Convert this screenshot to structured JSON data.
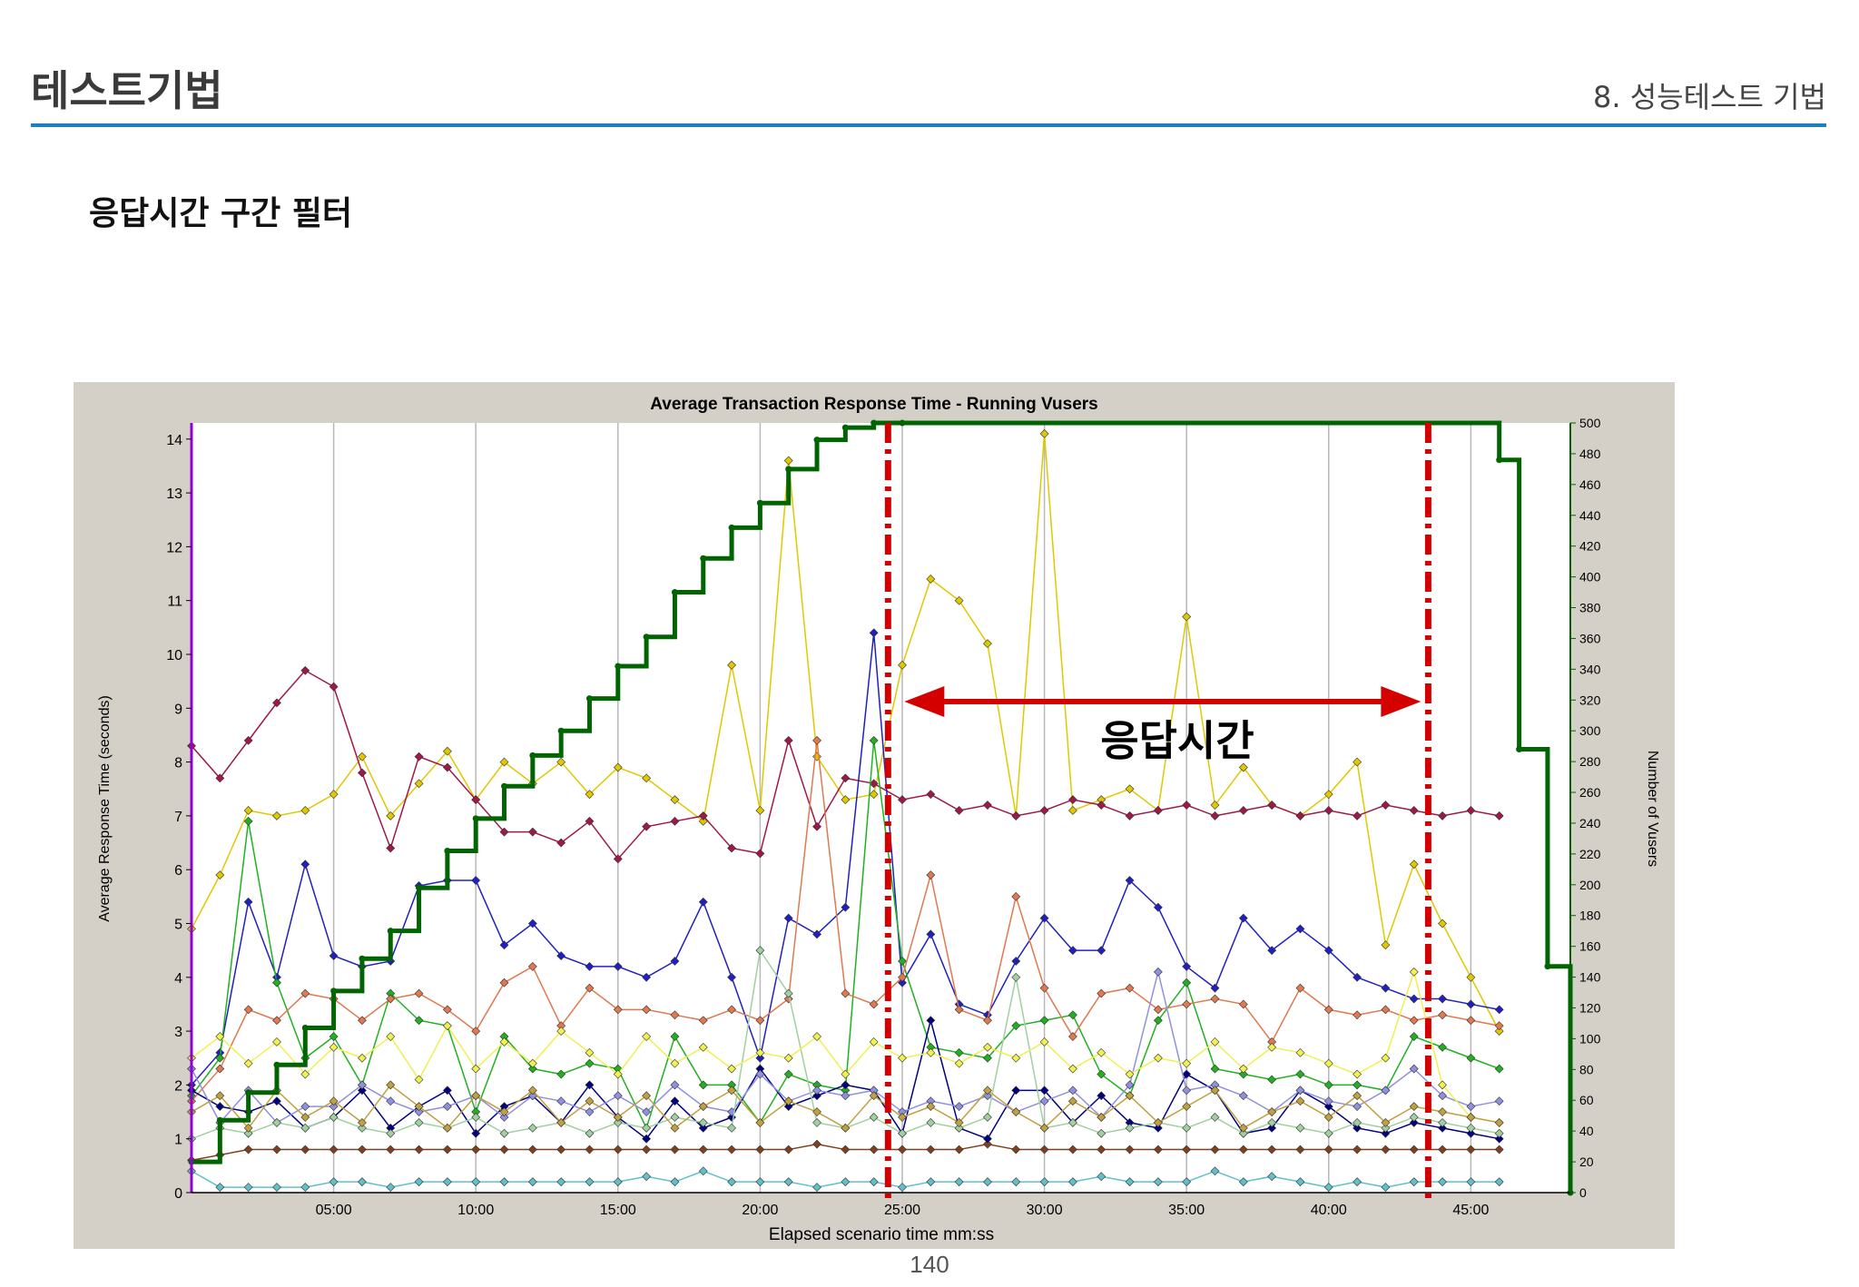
{
  "header": {
    "title": "테스트기법",
    "chapter": "8. 성능테스트 기법"
  },
  "section": {
    "title": "응답시간 구간 필터"
  },
  "page": {
    "number": "140"
  },
  "colors": {
    "header_rule": "#1b7fc0",
    "chart_background": "#d4d0c8",
    "plot_background": "#ffffff",
    "vusers_line": "#006400",
    "marker_lines": "#d40000"
  },
  "annotation": {
    "label": "응답시간",
    "start_time": "24:30",
    "end_time": "43:30"
  },
  "chart_data": {
    "type": "line",
    "title": "Average Transaction Response Time - Running Vusers",
    "xlabel": "Elapsed scenario time mm:ss",
    "ylabel": "Average Response Time (seconds)",
    "y2label": "Number of Vusers",
    "x_ticks": [
      "05:00",
      "10:00",
      "15:00",
      "20:00",
      "25:00",
      "30:00",
      "35:00",
      "40:00",
      "45:00"
    ],
    "y_ticks": [
      "0",
      "1",
      "2",
      "3",
      "4",
      "5",
      "6",
      "7",
      "8",
      "9",
      "10",
      "11",
      "12",
      "13",
      "14"
    ],
    "y2_ticks": [
      "0",
      "20",
      "40",
      "60",
      "80",
      "100",
      "120",
      "140",
      "160",
      "180",
      "200",
      "220",
      "240",
      "260",
      "280",
      "300",
      "320",
      "340",
      "360",
      "380",
      "400",
      "420",
      "440",
      "460",
      "480",
      "500"
    ],
    "xlim_minutes": [
      0,
      48.5
    ],
    "ylim": [
      0,
      14.3
    ],
    "y2lim": [
      0,
      500
    ],
    "grid": "vertical",
    "response_time_minutes": [
      0,
      1,
      2,
      3,
      4,
      5,
      6,
      7,
      8,
      9,
      10,
      11,
      12,
      13,
      14,
      15,
      16,
      17,
      18,
      19,
      20,
      21,
      22,
      23,
      24,
      25,
      26,
      27,
      28,
      29,
      30,
      31,
      32,
      33,
      34,
      35,
      36,
      37,
      38,
      39,
      40,
      41,
      42,
      43,
      44,
      45,
      46
    ],
    "vusers": {
      "times": [
        0,
        1,
        2,
        3,
        4,
        5,
        6,
        7,
        8,
        9,
        10,
        11,
        12,
        13,
        14,
        15,
        16,
        17,
        18,
        19,
        20,
        21,
        22,
        23,
        24,
        25,
        46,
        46.7,
        47.7,
        48.5
      ],
      "values": [
        20,
        47,
        65,
        83,
        107,
        131,
        152,
        170,
        198,
        222,
        243,
        264,
        284,
        300,
        321,
        342,
        361,
        390,
        412,
        432,
        448,
        470,
        489,
        497,
        500,
        500,
        476,
        288,
        147,
        0
      ]
    },
    "series": [
      {
        "color": "#e0c800",
        "values": [
          4.9,
          5.9,
          7.1,
          7.0,
          7.1,
          7.4,
          8.1,
          7.0,
          7.6,
          8.2,
          7.3,
          8.0,
          7.6,
          8.0,
          7.4,
          7.9,
          7.7,
          7.3,
          6.9,
          9.8,
          7.1,
          13.6,
          8.1,
          7.3,
          7.4,
          9.8,
          11.4,
          11.0,
          10.2,
          7.0,
          14.1,
          7.1,
          7.3,
          7.5,
          7.1,
          10.7,
          7.2,
          7.9,
          7.2,
          7.0,
          7.4,
          8.0,
          4.6,
          6.1,
          5.0,
          4.0,
          3.0
        ]
      },
      {
        "color": "#a01848",
        "values": [
          8.3,
          7.7,
          8.4,
          9.1,
          9.7,
          9.4,
          7.8,
          6.4,
          8.1,
          7.9,
          7.3,
          6.7,
          6.7,
          6.5,
          6.9,
          6.2,
          6.8,
          6.9,
          7.0,
          6.4,
          6.3,
          8.4,
          6.8,
          7.7,
          7.6,
          7.3,
          7.4,
          7.1,
          7.2,
          7.0,
          7.1,
          7.3,
          7.2,
          7.0,
          7.1,
          7.2,
          7.0,
          7.1,
          7.2,
          7.0,
          7.1,
          7.0,
          7.2,
          7.1,
          7.0,
          7.1,
          7.0
        ]
      },
      {
        "color": "#2020c0",
        "values": [
          2.0,
          2.6,
          5.4,
          4.0,
          6.1,
          4.4,
          4.2,
          4.3,
          5.7,
          5.8,
          5.8,
          4.6,
          5.0,
          4.4,
          4.2,
          4.2,
          4.0,
          4.3,
          5.4,
          4.0,
          2.5,
          5.1,
          4.8,
          5.3,
          10.4,
          3.9,
          4.8,
          3.5,
          3.3,
          4.3,
          5.1,
          4.5,
          4.5,
          5.8,
          5.3,
          4.2,
          3.8,
          5.1,
          4.5,
          4.9,
          4.5,
          4.0,
          3.8,
          3.6,
          3.6,
          3.5,
          3.4
        ]
      },
      {
        "color": "#20b020",
        "values": [
          1.8,
          2.5,
          6.9,
          3.9,
          2.5,
          2.9,
          2.0,
          3.7,
          3.2,
          3.1,
          1.5,
          2.9,
          2.3,
          2.2,
          2.4,
          2.3,
          1.2,
          2.9,
          2.0,
          2.0,
          1.3,
          2.2,
          2.0,
          1.9,
          8.4,
          4.3,
          2.7,
          2.6,
          2.5,
          3.1,
          3.2,
          3.3,
          2.2,
          1.8,
          3.2,
          3.9,
          2.3,
          2.2,
          2.1,
          2.2,
          2.0,
          2.0,
          1.9,
          2.9,
          2.7,
          2.5,
          2.3
        ]
      },
      {
        "color": "#e07850",
        "values": [
          1.7,
          2.3,
          3.4,
          3.2,
          3.7,
          3.6,
          3.2,
          3.6,
          3.7,
          3.4,
          3.0,
          3.9,
          4.2,
          3.1,
          3.8,
          3.4,
          3.4,
          3.3,
          3.2,
          3.4,
          3.2,
          3.6,
          8.4,
          3.7,
          3.5,
          4.0,
          5.9,
          3.4,
          3.2,
          5.5,
          3.8,
          2.9,
          3.7,
          3.8,
          3.4,
          3.5,
          3.6,
          3.5,
          2.8,
          3.8,
          3.4,
          3.3,
          3.4,
          3.2,
          3.3,
          3.2,
          3.1
        ]
      },
      {
        "color": "#60c0c8",
        "values": [
          0.4,
          0.1,
          0.1,
          0.1,
          0.1,
          0.2,
          0.2,
          0.1,
          0.2,
          0.2,
          0.2,
          0.2,
          0.2,
          0.2,
          0.2,
          0.2,
          0.3,
          0.2,
          0.4,
          0.2,
          0.2,
          0.2,
          0.1,
          0.2,
          0.2,
          0.1,
          0.2,
          0.2,
          0.2,
          0.2,
          0.2,
          0.2,
          0.3,
          0.2,
          0.2,
          0.2,
          0.4,
          0.2,
          0.3,
          0.2,
          0.1,
          0.2,
          0.1,
          0.2,
          0.2,
          0.2,
          0.2
        ]
      },
      {
        "color": "#804020",
        "values": [
          0.6,
          0.7,
          0.8,
          0.8,
          0.8,
          0.8,
          0.8,
          0.8,
          0.8,
          0.8,
          0.8,
          0.8,
          0.8,
          0.8,
          0.8,
          0.8,
          0.8,
          0.8,
          0.8,
          0.8,
          0.8,
          0.8,
          0.9,
          0.8,
          0.8,
          0.8,
          0.8,
          0.8,
          0.9,
          0.8,
          0.8,
          0.8,
          0.8,
          0.8,
          0.8,
          0.8,
          0.8,
          0.8,
          0.8,
          0.8,
          0.8,
          0.8,
          0.8,
          0.8,
          0.8,
          0.8,
          0.8
        ]
      },
      {
        "color": "#000080",
        "values": [
          1.9,
          1.6,
          1.5,
          1.7,
          1.2,
          1.4,
          1.9,
          1.2,
          1.6,
          1.9,
          1.1,
          1.6,
          1.8,
          1.3,
          2.0,
          1.4,
          1.0,
          1.7,
          1.2,
          1.4,
          2.3,
          1.6,
          1.8,
          2.0,
          1.9,
          1.1,
          3.2,
          1.2,
          1.0,
          1.9,
          1.9,
          1.3,
          1.8,
          1.3,
          1.2,
          2.2,
          1.9,
          1.1,
          1.2,
          1.9,
          1.6,
          1.2,
          1.1,
          1.3,
          1.2,
          1.1,
          1.0
        ]
      },
      {
        "color": "#9090e0",
        "values": [
          2.3,
          1.3,
          1.9,
          1.3,
          1.6,
          1.6,
          2.0,
          1.7,
          1.5,
          1.6,
          1.8,
          1.4,
          1.8,
          1.7,
          1.5,
          1.8,
          1.5,
          2.0,
          1.6,
          1.5,
          2.2,
          1.7,
          1.9,
          1.8,
          1.9,
          1.5,
          1.7,
          1.6,
          1.8,
          1.5,
          1.7,
          1.9,
          1.4,
          2.0,
          4.1,
          1.9,
          2.0,
          1.8,
          1.5,
          1.9,
          1.7,
          1.6,
          1.9,
          2.3,
          1.8,
          1.6,
          1.7
        ]
      },
      {
        "color": "#a0d0a0",
        "values": [
          1.0,
          1.2,
          1.1,
          1.3,
          1.2,
          1.4,
          1.2,
          1.1,
          1.3,
          1.2,
          1.4,
          1.1,
          1.2,
          1.3,
          1.1,
          1.3,
          1.2,
          1.4,
          1.3,
          1.2,
          4.5,
          3.7,
          1.3,
          1.2,
          1.4,
          1.1,
          1.3,
          1.2,
          1.4,
          4.0,
          1.2,
          1.3,
          1.1,
          1.2,
          1.3,
          1.2,
          1.4,
          1.1,
          1.3,
          1.2,
          1.1,
          1.3,
          1.2,
          1.4,
          1.3,
          1.2,
          1.1
        ]
      },
      {
        "color": "#f0f050",
        "values": [
          2.5,
          2.9,
          2.4,
          2.8,
          2.2,
          2.7,
          2.5,
          2.9,
          2.1,
          3.1,
          2.3,
          2.8,
          2.4,
          3.0,
          2.6,
          2.2,
          2.9,
          2.4,
          2.7,
          2.3,
          2.6,
          2.5,
          2.9,
          2.2,
          2.8,
          2.5,
          2.6,
          2.4,
          2.7,
          2.5,
          2.8,
          2.3,
          2.6,
          2.2,
          2.5,
          2.4,
          2.8,
          2.3,
          2.7,
          2.6,
          2.4,
          2.2,
          2.5,
          4.1,
          2.0,
          1.4,
          1.3
        ]
      },
      {
        "color": "#c0a040",
        "values": [
          1.5,
          1.8,
          1.2,
          1.9,
          1.4,
          1.7,
          1.3,
          2.0,
          1.6,
          1.2,
          1.8,
          1.5,
          1.9,
          1.3,
          1.7,
          1.4,
          1.8,
          1.2,
          1.6,
          1.9,
          1.3,
          1.7,
          1.5,
          1.2,
          1.8,
          1.4,
          1.6,
          1.3,
          1.9,
          1.5,
          1.2,
          1.7,
          1.4,
          1.8,
          1.3,
          1.6,
          1.9,
          1.2,
          1.5,
          1.7,
          1.4,
          1.8,
          1.3,
          1.6,
          1.5,
          1.4,
          1.3
        ]
      }
    ]
  }
}
